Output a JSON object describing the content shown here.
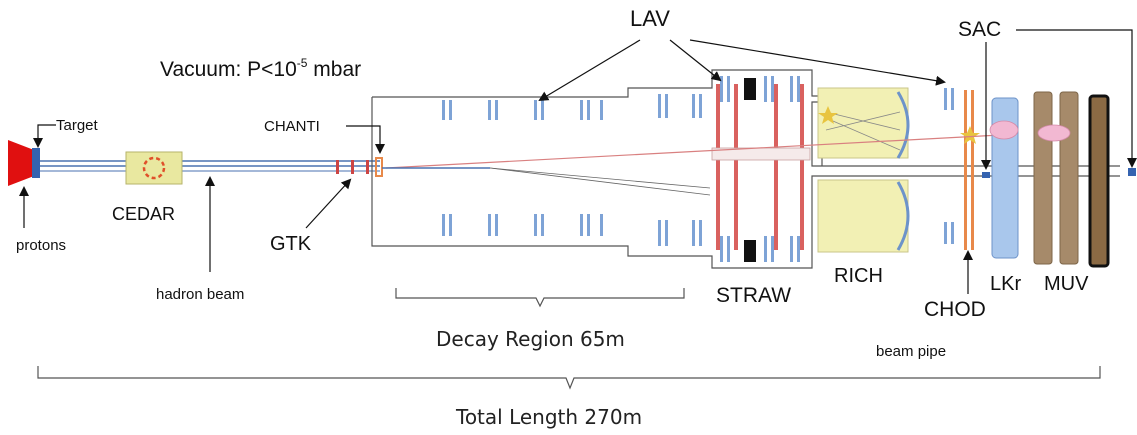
{
  "labels": {
    "vacuum_prefix": "Vacuum: P<10",
    "vacuum_exp": "-5",
    "vacuum_suffix": " mbar",
    "target": "Target",
    "chanti": "CHANTI",
    "cedar": "CEDAR",
    "protons": "protons",
    "gtk": "GTK",
    "hadron_beam": "hadron beam",
    "lav": "LAV",
    "sac": "SAC",
    "straw": "STRAW",
    "rich": "RICH",
    "chod": "CHOD",
    "lkr": "LKr",
    "muv": "MUV",
    "beam_pipe": "beam pipe",
    "decay_region": "Decay Region 65m",
    "total_length": "Total Length 270m"
  },
  "colors": {
    "beam": "#4a72b0",
    "lav_blocks": "#7ea3d6",
    "straw_chambers": "#d9615f",
    "rich_vessel": "#f2f0b4",
    "rich_mirror": "#7ea3d6",
    "chod": "#e8894a",
    "lkr": "#a9c7ec",
    "muv": "#a68a6a",
    "cedar": "#e9e8a0",
    "target_proton": "#e01010",
    "shower": "#f2b8d2",
    "decay_line": "#d98080"
  }
}
